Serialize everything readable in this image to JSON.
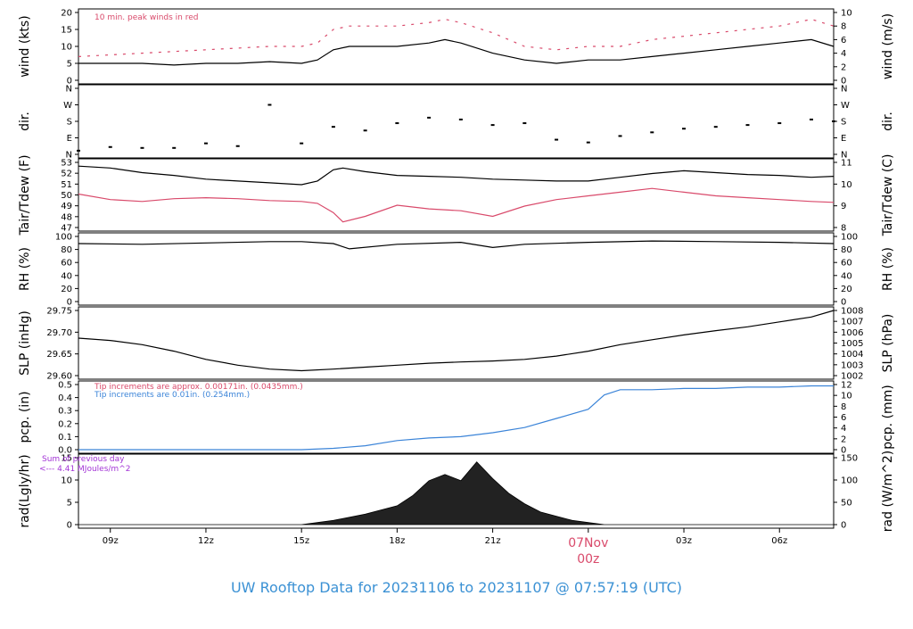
{
  "title": "UW Rooftop Data for 20231106  to  20231107 @ 07:57:19  (UTC)",
  "x_ticks": [
    "09z",
    "12z",
    "15z",
    "18z",
    "21z",
    "00z",
    "03z",
    "06z"
  ],
  "date_label": "07Nov",
  "colors": {
    "black": "#000000",
    "red": "#d94a6b",
    "blue": "#3b84d8",
    "purple": "#a335d6",
    "title": "#3b91d4"
  },
  "chart_data": [
    {
      "type": "line",
      "id": "wind",
      "ylabel_left": "wind (kts)",
      "ylabel_right": "wind (m/s)",
      "ylim": [
        0,
        20
      ],
      "yticks_left": [
        "0",
        "5",
        "10",
        "15",
        "20"
      ],
      "yticks_right": [
        "0",
        "2",
        "4",
        "6",
        "8",
        "10"
      ],
      "annotation": "10 min. peak winds in red",
      "x": [
        8,
        9,
        10,
        11,
        12,
        13,
        14,
        15,
        15.5,
        16,
        16.5,
        17,
        18,
        19,
        19.5,
        20,
        21,
        22,
        23,
        24,
        25,
        26,
        27,
        28,
        29,
        30,
        31,
        31.7
      ],
      "series": [
        {
          "values": [
            5,
            5,
            5,
            4.5,
            5,
            5,
            5.5,
            5,
            6,
            9,
            10,
            10,
            10,
            11,
            12,
            11,
            8,
            6,
            5,
            6,
            6,
            7,
            8,
            9,
            10,
            11,
            12,
            10
          ]
        },
        {
          "values": [
            7,
            7.5,
            8,
            8.5,
            9,
            9.5,
            10,
            10,
            11,
            15,
            16,
            16,
            16,
            17,
            18,
            17,
            14,
            10,
            9,
            10,
            10,
            12,
            13,
            14,
            15,
            16,
            18,
            16
          ]
        }
      ]
    },
    {
      "type": "scatter",
      "id": "dir",
      "ylabel_left": "dir.",
      "ylabel_right": "dir.",
      "yticks_left": [
        "N",
        "E",
        "S",
        "W",
        "N"
      ],
      "yticks_right": [
        "N",
        "E",
        "S",
        "W",
        "N"
      ],
      "ylim": [
        0,
        360
      ],
      "x": [
        8,
        9,
        10,
        11,
        12,
        13,
        14,
        15,
        16,
        17,
        18,
        19,
        20,
        21,
        22,
        23,
        24,
        25,
        26,
        27,
        28,
        29,
        30,
        31,
        31.7
      ],
      "values": [
        20,
        40,
        35,
        35,
        60,
        45,
        270,
        60,
        150,
        130,
        170,
        200,
        190,
        160,
        170,
        80,
        65,
        100,
        120,
        140,
        150,
        160,
        170,
        190,
        180
      ]
    },
    {
      "type": "line",
      "id": "temp",
      "ylabel_left": "Tair/Tdew (F)",
      "ylabel_right": "Tair/Tdew (C)",
      "ylim": [
        46.4,
        53.4
      ],
      "yticks_left": [
        "47",
        "48",
        "49",
        "50",
        "51",
        "52",
        "53"
      ],
      "yticks_right": [
        "8",
        "9",
        "10",
        "11"
      ],
      "x": [
        8,
        9,
        10,
        11,
        12,
        13,
        14,
        15,
        15.5,
        16,
        16.3,
        17,
        18,
        19,
        20,
        21,
        22,
        23,
        24,
        25,
        26,
        27,
        28,
        29,
        30,
        31,
        31.7
      ],
      "series": [
        {
          "values": [
            53,
            52.8,
            52.3,
            52,
            51.6,
            51.4,
            51.2,
            51,
            51.4,
            52.6,
            52.8,
            52.4,
            52,
            51.9,
            51.8,
            51.6,
            51.5,
            51.4,
            51.4,
            51.8,
            52.2,
            52.5,
            52.3,
            52.1,
            52,
            51.8,
            51.9
          ]
        },
        {
          "values": [
            50,
            49.4,
            49.2,
            49.5,
            49.6,
            49.5,
            49.3,
            49.2,
            49,
            48,
            47,
            47.6,
            48.8,
            48.4,
            48.2,
            47.6,
            48.7,
            49.4,
            49.8,
            50.2,
            50.6,
            50.2,
            49.8,
            49.6,
            49.4,
            49.2,
            49.1
          ]
        }
      ]
    },
    {
      "type": "line",
      "id": "rh",
      "ylabel_left": "RH (%)",
      "ylabel_right": "RH (%)",
      "ylim": [
        0,
        100
      ],
      "yticks_left": [
        "0",
        "20",
        "40",
        "60",
        "80",
        "100"
      ],
      "yticks_right": [
        "0",
        "20",
        "40",
        "60",
        "80",
        "100"
      ],
      "x": [
        8,
        10,
        12,
        14,
        15,
        16,
        16.5,
        18,
        20,
        21,
        22,
        24,
        26,
        28,
        30,
        31.7
      ],
      "values": [
        89,
        88,
        90,
        92,
        92,
        89,
        81,
        88,
        91,
        83,
        88,
        91,
        93,
        92,
        91,
        89
      ]
    },
    {
      "type": "line",
      "id": "slp",
      "ylabel_left": "SLP (inHg)",
      "ylabel_right": "SLP (hPa)",
      "ylim": [
        29.58,
        29.78
      ],
      "yticks_left": [
        "29.60",
        "29.65",
        "29.70",
        "29.75"
      ],
      "yticks_right": [
        "1002",
        "1003",
        "1004",
        "1005",
        "1006",
        "1007",
        "1008"
      ],
      "x": [
        8,
        9,
        10,
        11,
        12,
        13,
        14,
        15,
        16,
        17,
        18,
        19,
        20,
        21,
        22,
        23,
        24,
        25,
        26,
        27,
        28,
        29,
        30,
        31,
        31.7
      ],
      "values": [
        29.695,
        29.688,
        29.675,
        29.655,
        29.63,
        29.612,
        29.6,
        29.595,
        29.6,
        29.606,
        29.612,
        29.618,
        29.622,
        29.625,
        29.63,
        29.64,
        29.655,
        29.675,
        29.69,
        29.705,
        29.718,
        29.73,
        29.745,
        29.76,
        29.78
      ]
    },
    {
      "type": "line",
      "id": "pcp",
      "ylabel_left": "pcp. (in)",
      "ylabel_right": "pcp. (mm)",
      "ylim": [
        0,
        0.5
      ],
      "yticks_left": [
        "0.0",
        "0.1",
        "0.2",
        "0.3",
        "0.4",
        "0.5"
      ],
      "yticks_right": [
        "0",
        "2",
        "4",
        "6",
        "8",
        "10",
        "12"
      ],
      "annotations": [
        "Tip increments are approx. 0.00171in. (0.0435mm.)",
        "Tip increments are 0.01in. (0.254mm.)"
      ],
      "x": [
        8,
        9,
        10,
        11,
        12,
        13,
        14,
        15,
        16,
        17,
        18,
        19,
        20,
        21,
        22,
        23,
        24,
        24.5,
        25,
        26,
        27,
        28,
        29,
        30,
        31,
        31.7
      ],
      "values": [
        0,
        0,
        0,
        0,
        0,
        0,
        0,
        0,
        0.01,
        0.03,
        0.07,
        0.09,
        0.1,
        0.13,
        0.17,
        0.24,
        0.31,
        0.42,
        0.46,
        0.46,
        0.47,
        0.47,
        0.48,
        0.48,
        0.49,
        0.49
      ]
    },
    {
      "type": "area",
      "id": "rad",
      "ylabel_left": "rad(Lgly/hr)",
      "ylabel_right": "rad (W/m^2)",
      "ylim": [
        0,
        16
      ],
      "yticks_left": [
        "0",
        "5",
        "10",
        "15"
      ],
      "yticks_right": [
        "0",
        "50",
        "100",
        "150"
      ],
      "annotations": [
        "Sum of previous day",
        "<--- 4.41 MJoules/m^2"
      ],
      "x": [
        8,
        14.5,
        15,
        15.5,
        16,
        17,
        18,
        18.5,
        19,
        19.5,
        20,
        20.5,
        21,
        21.5,
        22,
        22.5,
        23,
        23.5,
        24,
        24.5,
        25,
        31.7
      ],
      "values": [
        0,
        0,
        0,
        0.5,
        1,
        2.5,
        4.5,
        7,
        10.5,
        12,
        10.5,
        15,
        11,
        7.5,
        5,
        3,
        2,
        1,
        0.5,
        0,
        0,
        0
      ]
    }
  ]
}
